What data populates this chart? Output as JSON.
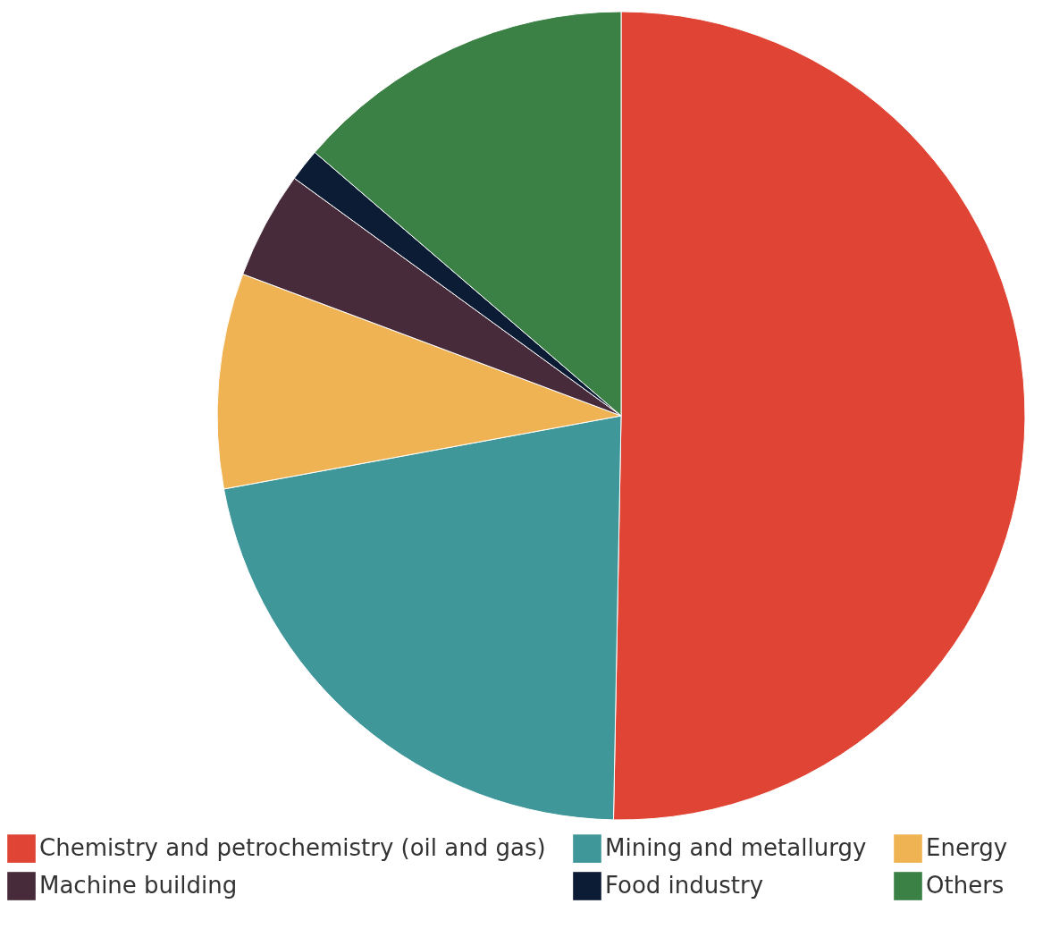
{
  "chart_data": {
    "type": "pie",
    "categories": [
      "Chemistry and petrochemistry (oil and gas)",
      "Mining and metallurgy",
      "Energy",
      "Machine building",
      "Food industry",
      "Others"
    ],
    "values": [
      50.3,
      21.8,
      8.6,
      4.3,
      1.3,
      13.7
    ],
    "colors": [
      "#df4434",
      "#40979a",
      "#f0b354",
      "#472b3a",
      "#0c1c35",
      "#3b8145"
    ],
    "legend": "bottom"
  }
}
